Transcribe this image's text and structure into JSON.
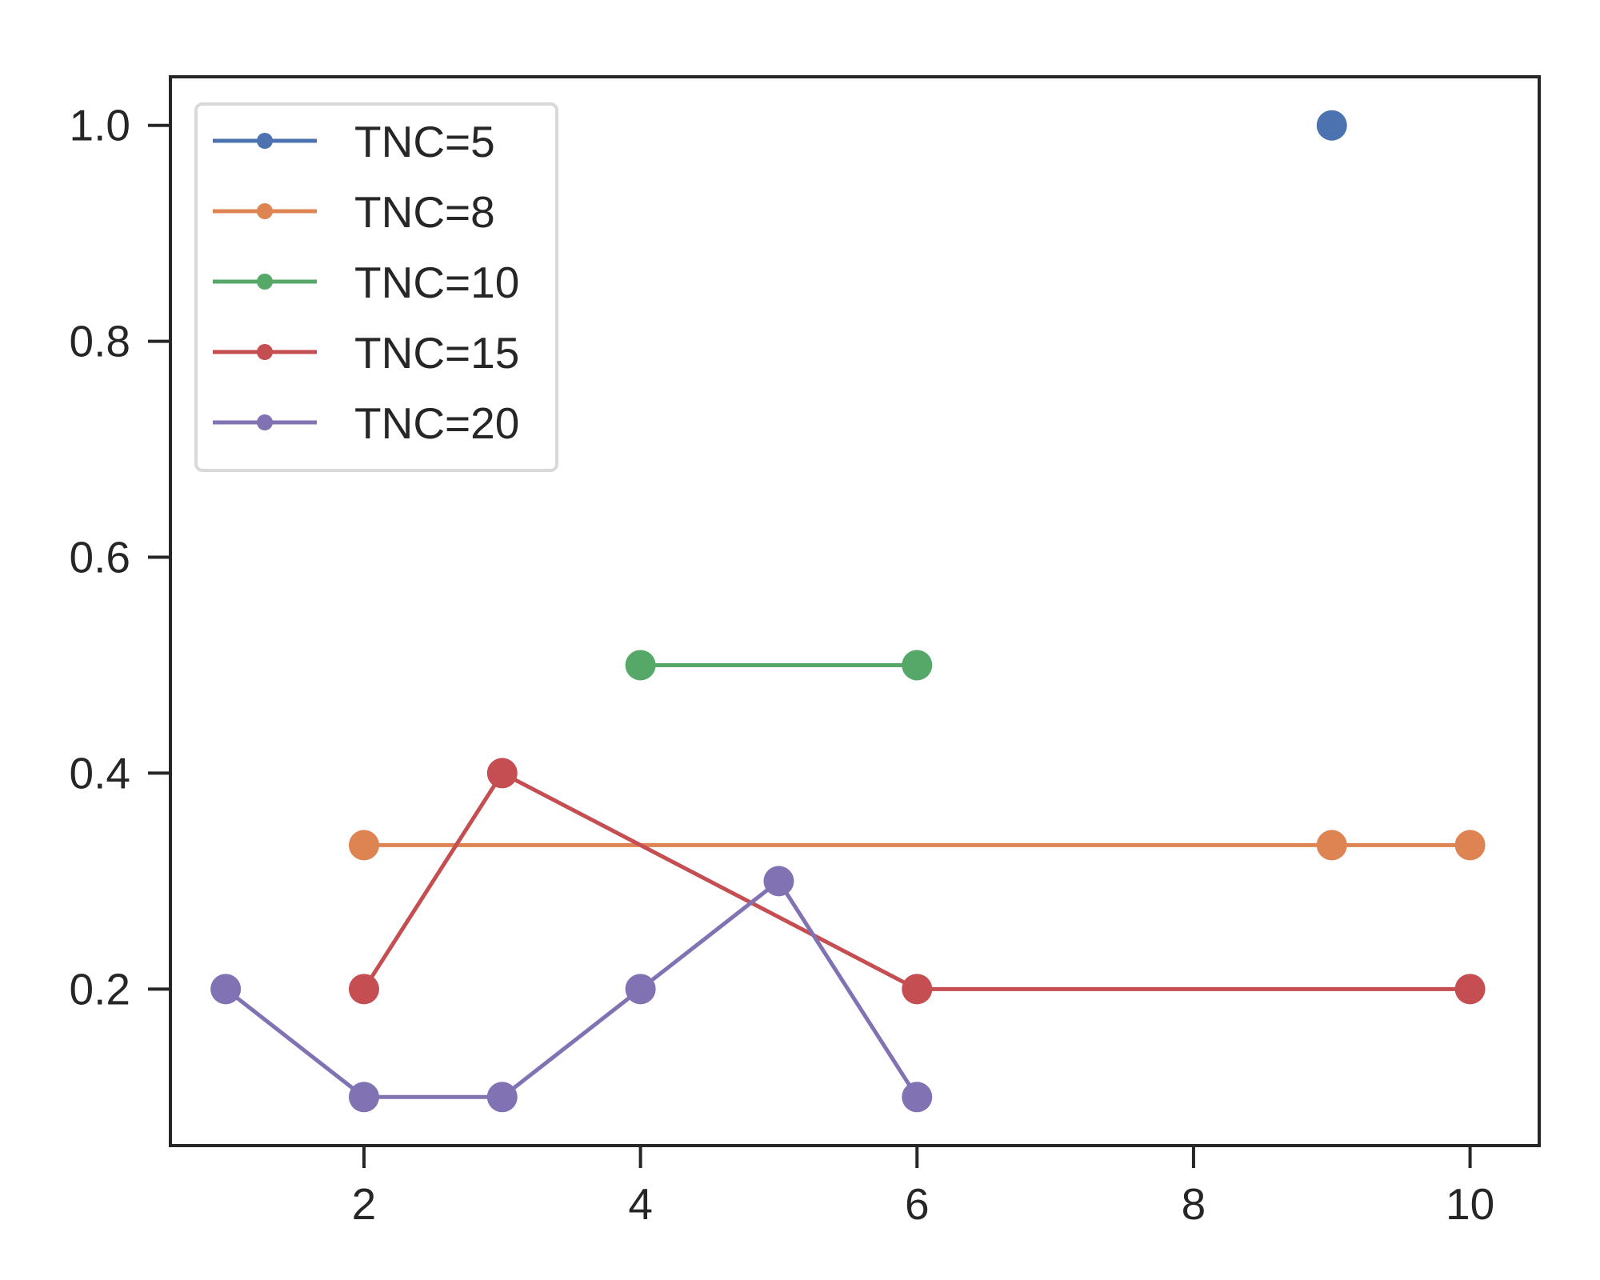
{
  "chart_data": {
    "type": "line",
    "title": "",
    "xlabel": "",
    "ylabel": "",
    "xlim": [
      0.6,
      10.5
    ],
    "ylim": [
      0.055,
      1.045
    ],
    "xticks": [
      2,
      4,
      6,
      8,
      10
    ],
    "xtick_labels": [
      "2",
      "4",
      "6",
      "8",
      "10"
    ],
    "yticks": [
      0.2,
      0.4,
      0.6,
      0.8,
      1.0
    ],
    "ytick_labels": [
      "0.2",
      "0.4",
      "0.6",
      "0.8",
      "1.0"
    ],
    "grid": false,
    "legend_position": "upper-left",
    "series": [
      {
        "name": "TNC=5",
        "color": "#4c72b0",
        "points": [
          [
            9,
            1.0
          ]
        ]
      },
      {
        "name": "TNC=8",
        "color": "#dd8452",
        "points": [
          [
            2,
            0.3333
          ],
          [
            9,
            0.3333
          ],
          [
            10,
            0.3333
          ]
        ]
      },
      {
        "name": "TNC=10",
        "color": "#55a868",
        "points": [
          [
            4,
            0.5
          ],
          [
            6,
            0.5
          ]
        ]
      },
      {
        "name": "TNC=15",
        "color": "#c44e52",
        "points": [
          [
            2,
            0.2
          ],
          [
            3,
            0.4
          ],
          [
            6,
            0.2
          ],
          [
            10,
            0.2
          ]
        ]
      },
      {
        "name": "TNC=20",
        "color": "#8172b3",
        "points": [
          [
            1,
            0.2
          ],
          [
            2,
            0.1
          ],
          [
            3,
            0.1
          ],
          [
            4,
            0.2
          ],
          [
            5,
            0.3
          ],
          [
            6,
            0.1
          ]
        ]
      }
    ]
  }
}
